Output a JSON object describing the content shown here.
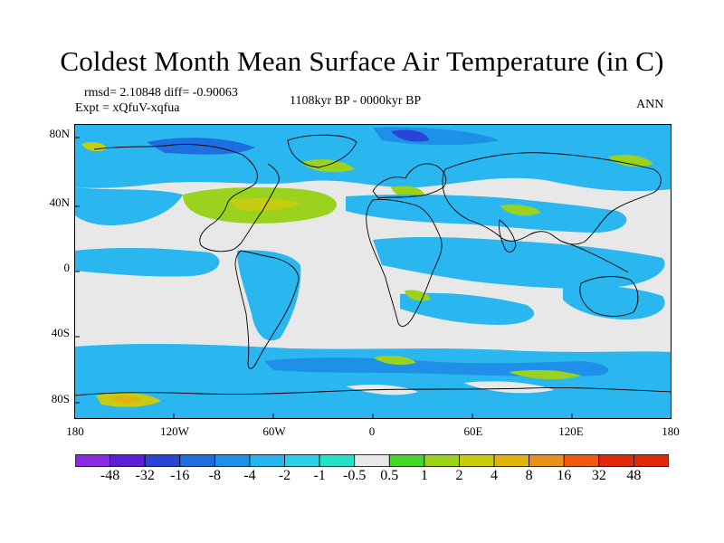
{
  "title": "Coldest Month Mean Surface Air Temperature (in C)",
  "stats_line": "rmsd= 2.10848  diff= -0.90063",
  "expt_line": "Expt = xQfuV-xqfua",
  "period": "1108kyr BP - 0000kyr BP",
  "season": "ANN",
  "lat_labels": [
    "80N",
    "40N",
    "0",
    "40S",
    "80S"
  ],
  "lon_labels": [
    "180",
    "120W",
    "60W",
    "0",
    "60E",
    "120E",
    "180"
  ],
  "colorbar": {
    "labels": [
      "-48",
      "-32",
      "-16",
      "-8",
      "-4",
      "-2",
      "-1",
      "-0.5",
      "0.5",
      "1",
      "2",
      "4",
      "8",
      "16",
      "32",
      "48"
    ],
    "colors": [
      "#8a2be2",
      "#5a1fd6",
      "#2a44d8",
      "#1e6ee0",
      "#1e90e8",
      "#28b4ee",
      "#2ad0e6",
      "#27e0c8",
      "#e8e8e8",
      "#45d62a",
      "#9ad21e",
      "#c8cc10",
      "#e0b40c",
      "#e8901a",
      "#ee5a14",
      "#e02a0a"
    ]
  },
  "colors": {
    "background_field": "#e8e8e8",
    "ocean_blue": "#2ab6ee",
    "land_lines": "#000000"
  }
}
